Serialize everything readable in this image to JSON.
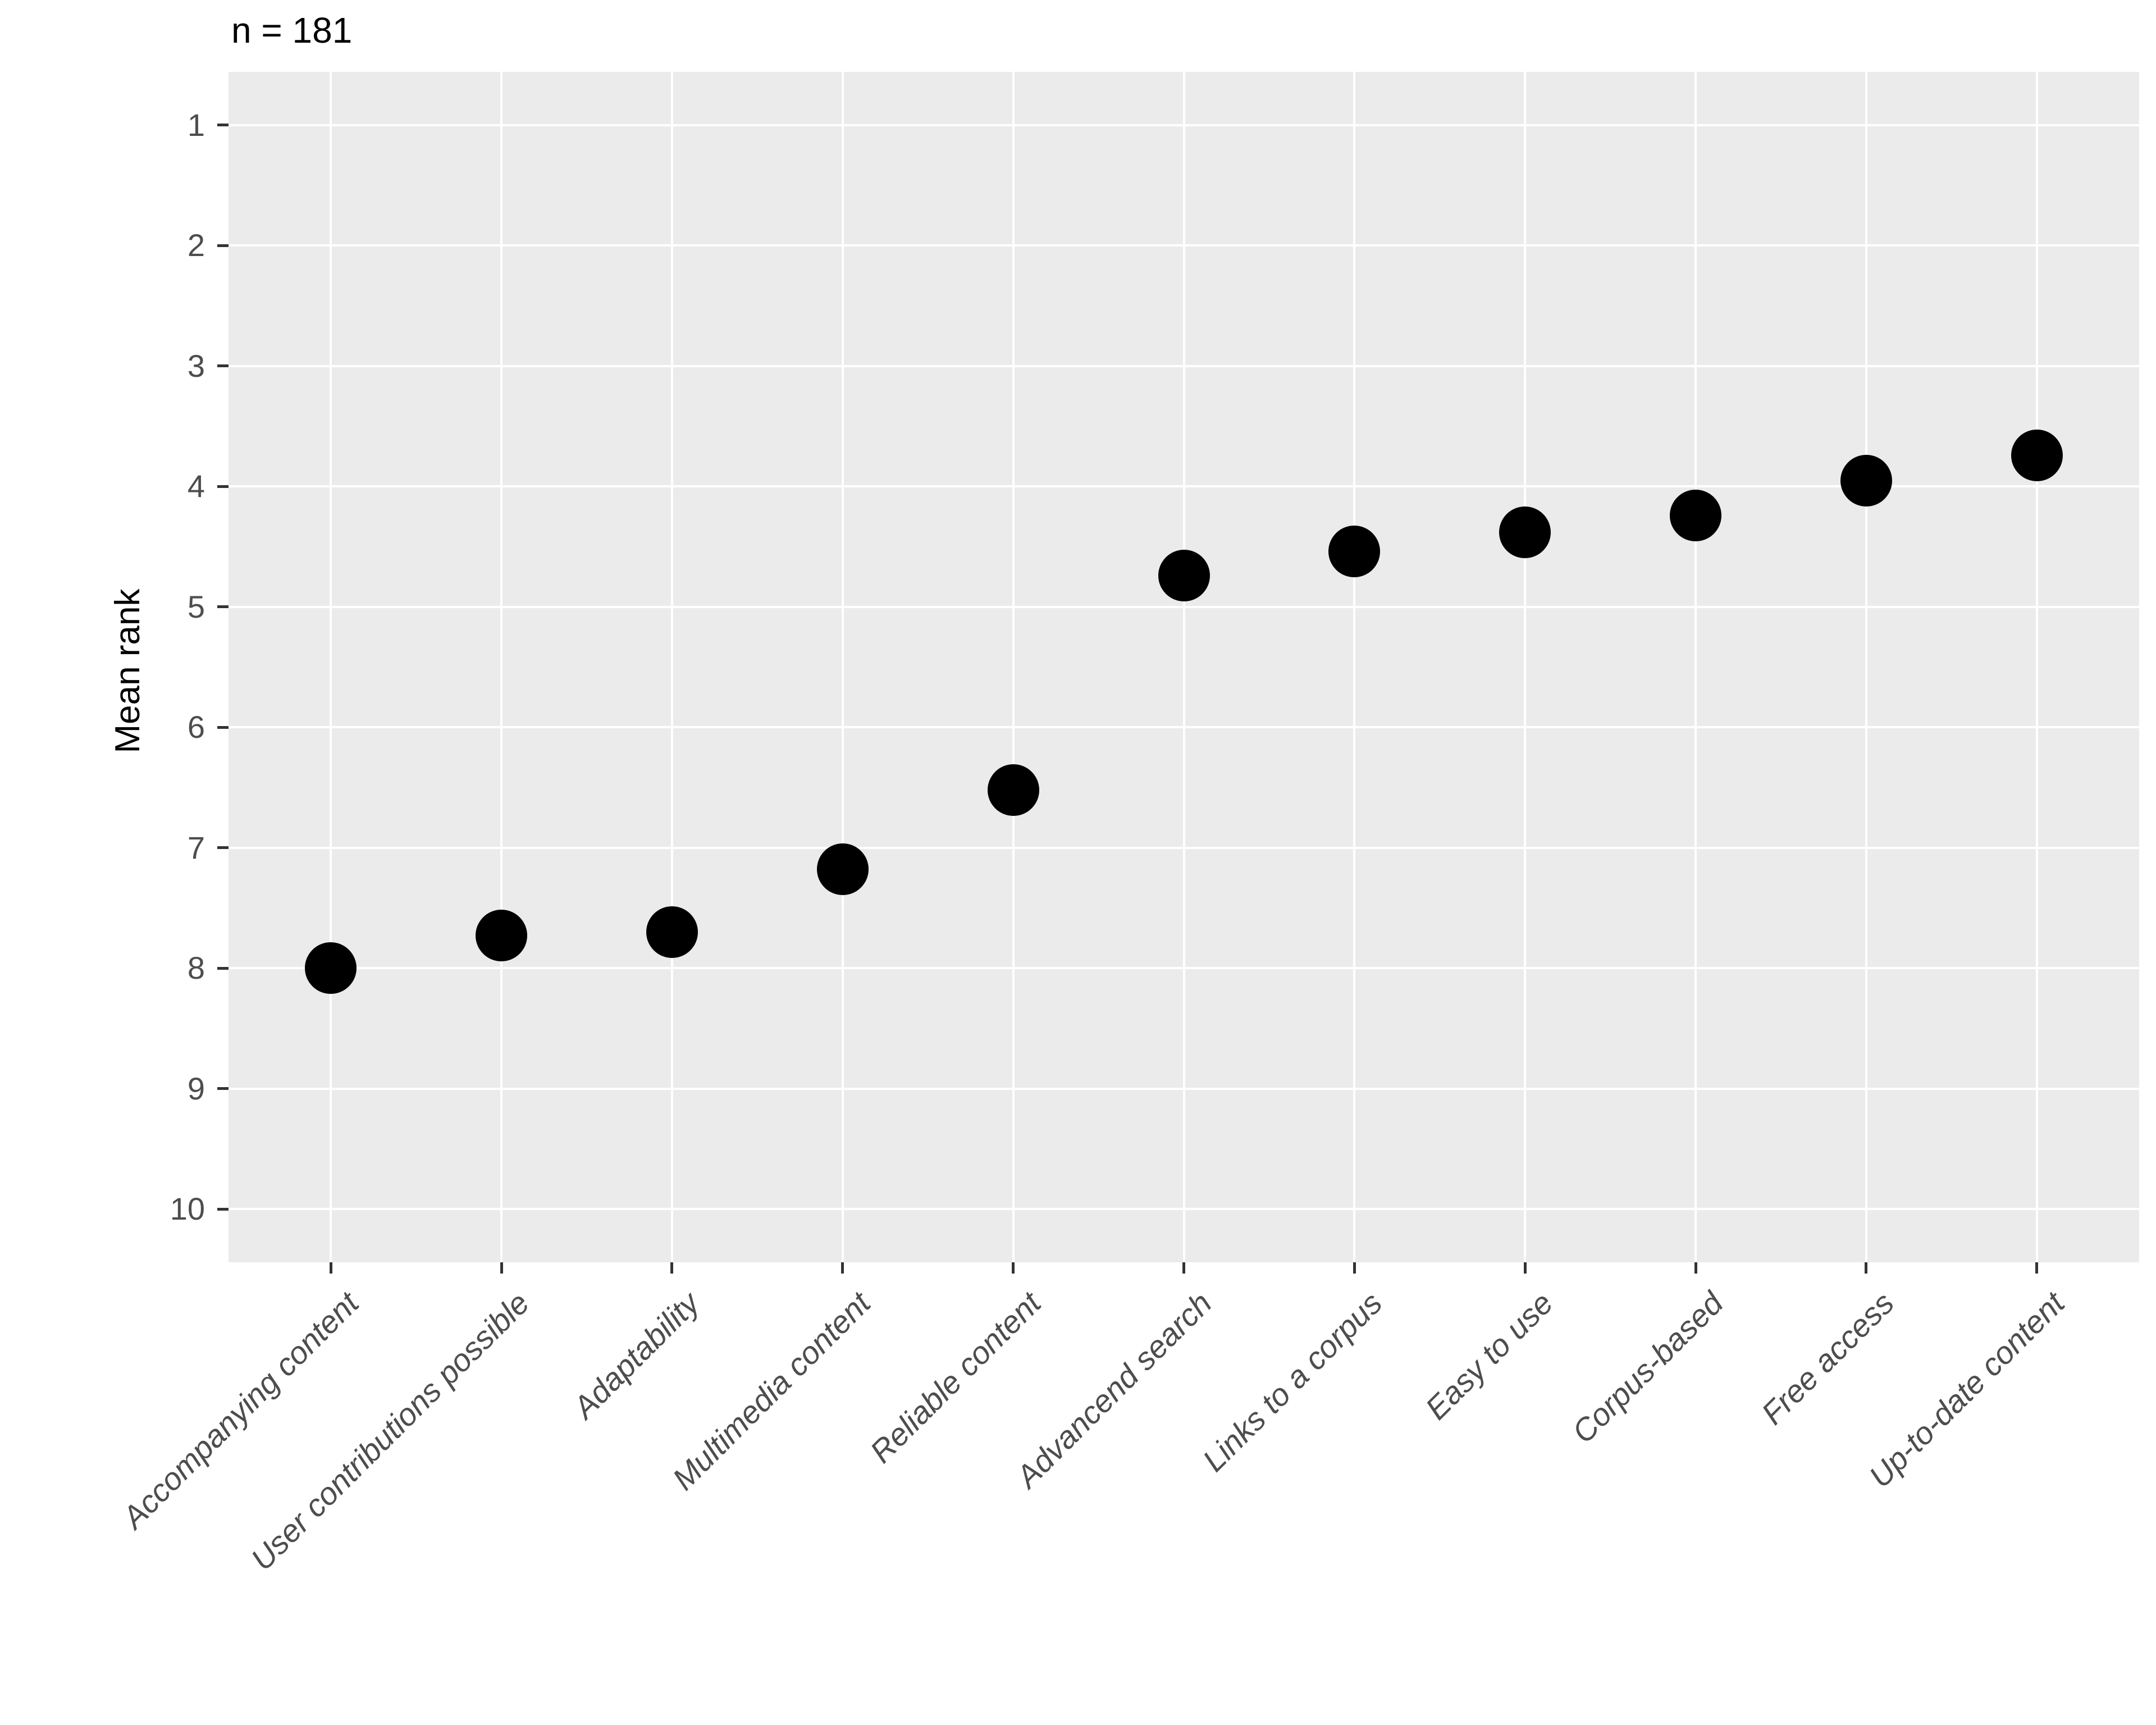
{
  "chart_data": {
    "type": "scatter",
    "title": "n = 181",
    "xlabel": "",
    "ylabel": "Mean rank",
    "categories": [
      "Accompanying content",
      "User contributions possible",
      "Adaptability",
      "Multimedia content",
      "Reliable content",
      "Advancend search",
      "Links to a corpus",
      "Easy to use",
      "Corpus-based",
      "Free access",
      "Up-to-date content"
    ],
    "values": [
      8.0,
      7.73,
      7.7,
      7.18,
      6.52,
      4.74,
      4.54,
      4.38,
      4.24,
      3.95,
      3.74
    ],
    "y_ticks": [
      1,
      2,
      3,
      4,
      5,
      6,
      7,
      8,
      9,
      10
    ],
    "ylim": [
      0.557,
      10.443
    ],
    "y_axis_reversed": true,
    "x_label_angle_deg": 45,
    "legend": "none",
    "grid": {
      "horizontal": "major-only",
      "vertical": "per-category",
      "color": "#FFFFFF"
    },
    "style": {
      "page_bg": "#FFFFFF",
      "panel_bg": "#EBEBEB",
      "point_color": "#000000",
      "tick_mark_color": "#333333",
      "axis_text_color": "#4D4D4D",
      "title_color": "#000000",
      "axis_title_color": "#000000"
    }
  }
}
